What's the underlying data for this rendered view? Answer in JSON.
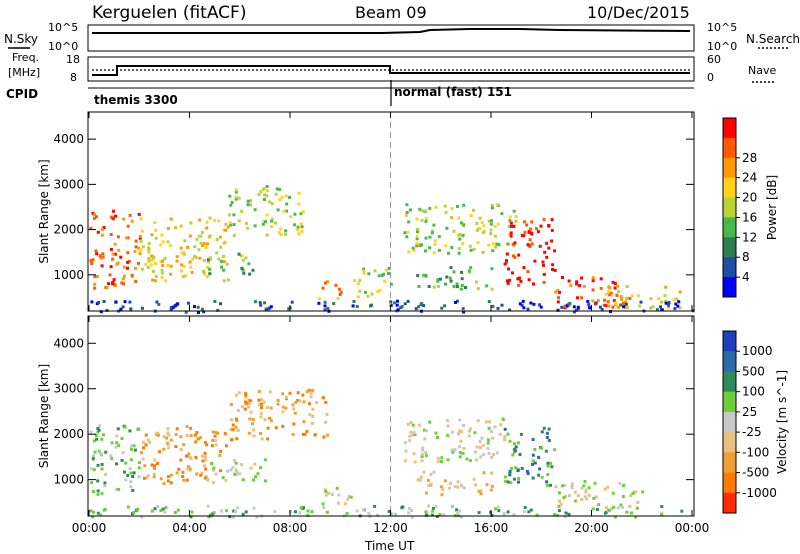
{
  "header": {
    "radar": "Kerguelen (fitACF)",
    "beam": "Beam 09",
    "date": "10/Dec/2015"
  },
  "noise_panel": {
    "left_label": "N.Sky",
    "right_label": "N.Search",
    "left_ticks": [
      "10^5",
      "10^0"
    ],
    "right_ticks": [
      "10^5",
      "10^0"
    ]
  },
  "freq_panel": {
    "left_label_line1": "Freq.",
    "left_label_line2": "[MHz]",
    "right_label": "Nave",
    "left_ticks": [
      "18",
      "8"
    ],
    "right_ticks": [
      "60",
      "0"
    ]
  },
  "cpid": {
    "label": "CPID",
    "modes": [
      {
        "name": "themis 3300",
        "start_hour": 0,
        "end_hour": 12
      },
      {
        "name": "normal (fast) 151",
        "start_hour": 12,
        "end_hour": 24
      }
    ]
  },
  "colors": {
    "power": [
      "#0000ff",
      "#1f4ea8",
      "#2e7d4e",
      "#4cb84c",
      "#b6d432",
      "#ffd21e",
      "#ff9a00",
      "#ff5a00",
      "#ff0000"
    ],
    "velocity": [
      "#1a3fbf",
      "#2a6aa6",
      "#2f8a5a",
      "#6ccf3a",
      "#c8c8c8",
      "#e8c080",
      "#f0a030",
      "#ff7a00",
      "#ff2a00"
    ]
  },
  "chart_data": [
    {
      "type": "heatmap",
      "title": "Power",
      "ylabel": "Slant Range [km]",
      "xlabel": "",
      "x_ticks": [
        "00:00",
        "04:00",
        "08:00",
        "12:00",
        "16:00",
        "20:00",
        "00:00"
      ],
      "y_ticks": [
        "1000",
        "2000",
        "3000",
        "4000"
      ],
      "ylim": [
        200,
        4600
      ],
      "xlim_hours": [
        0,
        24
      ],
      "colorbar_label": "Power [dB]",
      "colorbar_ticks": [
        "4",
        "8",
        "12",
        "16",
        "20",
        "24",
        "28"
      ],
      "echo_regions": [
        {
          "t0": 0.0,
          "t1": 2.0,
          "r0": 700,
          "r1": 2500,
          "level": 7
        },
        {
          "t0": 2.0,
          "t1": 5.5,
          "r0": 900,
          "r1": 2300,
          "level": 5
        },
        {
          "t0": 4.5,
          "t1": 6.5,
          "r0": 1000,
          "r1": 1500,
          "level": 3
        },
        {
          "t0": 5.5,
          "t1": 8.5,
          "r0": 1900,
          "r1": 3000,
          "level": 4
        },
        {
          "t0": 9.0,
          "t1": 10.0,
          "r0": 500,
          "r1": 900,
          "level": 6
        },
        {
          "t0": 10.5,
          "t1": 12.0,
          "r0": 500,
          "r1": 1200,
          "level": 4
        },
        {
          "t0": 12.5,
          "t1": 17.0,
          "r0": 1500,
          "r1": 2600,
          "level": 4
        },
        {
          "t0": 13.0,
          "t1": 16.0,
          "r0": 700,
          "r1": 1200,
          "level": 3
        },
        {
          "t0": 16.5,
          "t1": 18.5,
          "r0": 800,
          "r1": 2300,
          "level": 8
        },
        {
          "t0": 18.5,
          "t1": 21.5,
          "r0": 300,
          "r1": 1000,
          "level": 7
        },
        {
          "t0": 20.5,
          "t1": 23.5,
          "r0": 300,
          "r1": 800,
          "level": 5
        },
        {
          "t0": 0.0,
          "t1": 24.0,
          "r0": 200,
          "r1": 450,
          "level": 1
        }
      ]
    },
    {
      "type": "heatmap",
      "title": "Velocity",
      "ylabel": "Slant Range [km]",
      "xlabel": "Time UT",
      "x_ticks": [
        "00:00",
        "04:00",
        "08:00",
        "12:00",
        "16:00",
        "20:00",
        "00:00"
      ],
      "y_ticks": [
        "1000",
        "2000",
        "3000",
        "4000"
      ],
      "ylim": [
        200,
        4600
      ],
      "xlim_hours": [
        0,
        24
      ],
      "colorbar_label": "Velocity [m s^-1]",
      "colorbar_ticks": [
        "1000",
        "500",
        "100",
        "25",
        "-25",
        "-100",
        "-500",
        "-1000"
      ],
      "echo_regions": [
        {
          "t0": 0.0,
          "t1": 2.0,
          "r0": 700,
          "r1": 2300,
          "level": 3
        },
        {
          "t0": 2.0,
          "t1": 5.5,
          "r0": 900,
          "r1": 2200,
          "level": 6
        },
        {
          "t0": 4.5,
          "t1": 7.0,
          "r0": 1000,
          "r1": 1500,
          "level": 4
        },
        {
          "t0": 5.5,
          "t1": 9.5,
          "r0": 1900,
          "r1": 3000,
          "level": 6
        },
        {
          "t0": 9.0,
          "t1": 10.5,
          "r0": 500,
          "r1": 900,
          "level": 4
        },
        {
          "t0": 12.5,
          "t1": 16.5,
          "r0": 1400,
          "r1": 2400,
          "level": 4
        },
        {
          "t0": 13.0,
          "t1": 16.0,
          "r0": 700,
          "r1": 1200,
          "level": 5
        },
        {
          "t0": 16.5,
          "t1": 18.5,
          "r0": 900,
          "r1": 2200,
          "level": 2
        },
        {
          "t0": 18.5,
          "t1": 22.0,
          "r0": 400,
          "r1": 1000,
          "level": 4
        },
        {
          "t0": 0.0,
          "t1": 24.0,
          "r0": 200,
          "r1": 450,
          "level": 3
        }
      ]
    }
  ]
}
